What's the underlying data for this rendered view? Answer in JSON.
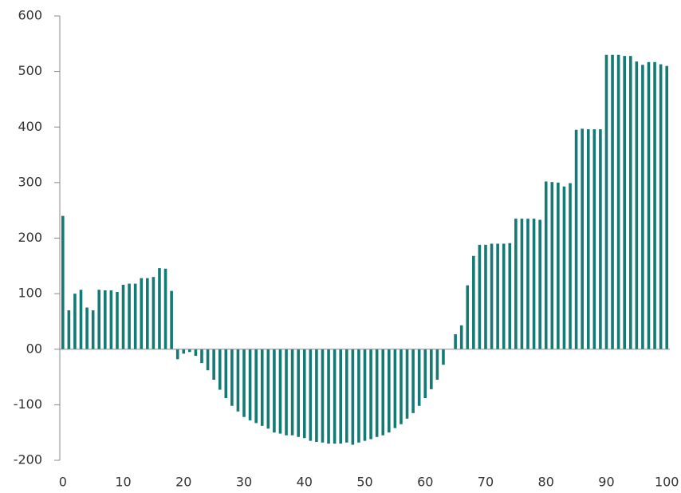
{
  "chart_data": {
    "type": "bar",
    "color": "#137a74",
    "x": [
      0,
      1,
      2,
      3,
      4,
      5,
      6,
      7,
      8,
      9,
      10,
      11,
      12,
      13,
      14,
      15,
      16,
      17,
      18,
      19,
      20,
      21,
      22,
      23,
      24,
      25,
      26,
      27,
      28,
      29,
      30,
      31,
      32,
      33,
      34,
      35,
      36,
      37,
      38,
      39,
      40,
      41,
      42,
      43,
      44,
      45,
      46,
      47,
      48,
      49,
      50,
      51,
      52,
      53,
      54,
      55,
      56,
      57,
      58,
      59,
      60,
      61,
      62,
      63,
      64,
      65,
      66,
      67,
      68,
      69,
      70,
      71,
      72,
      73,
      74,
      75,
      76,
      77,
      78,
      79,
      80,
      81,
      82,
      83,
      84,
      85,
      86,
      87,
      88,
      89,
      90,
      91,
      92,
      93,
      94,
      95,
      96,
      97,
      98,
      99,
      100
    ],
    "values": [
      240,
      70,
      100,
      107,
      75,
      70,
      107,
      106,
      106,
      103,
      116,
      118,
      118,
      128,
      128,
      130,
      146,
      145,
      105,
      -18,
      -8,
      -5,
      -12,
      -25,
      -38,
      -55,
      -73,
      -88,
      -102,
      -112,
      -122,
      -128,
      -133,
      -138,
      -143,
      -150,
      -152,
      -155,
      -155,
      -158,
      -160,
      -165,
      -167,
      -168,
      -170,
      -170,
      -170,
      -168,
      -172,
      -168,
      -165,
      -162,
      -158,
      -155,
      -150,
      -142,
      -135,
      -125,
      -115,
      -102,
      -88,
      -72,
      -55,
      -28,
      0,
      27,
      43,
      115,
      168,
      188,
      188,
      190,
      190,
      190,
      191,
      235,
      235,
      235,
      235,
      233,
      302,
      301,
      300,
      293,
      299,
      395,
      397,
      396,
      396,
      396,
      530,
      530,
      530,
      528,
      528,
      518,
      512,
      517,
      517,
      513,
      510
    ],
    "xlim": [
      -0.5,
      100.5
    ],
    "xticks": [
      0,
      10,
      20,
      30,
      40,
      50,
      60,
      70,
      80,
      90,
      100
    ],
    "ylim": [
      -200,
      600
    ],
    "yticks": [
      -200,
      -100,
      {
        "value": 0,
        "label": "00"
      },
      100,
      200,
      300,
      400,
      500,
      600
    ],
    "grid": false
  }
}
